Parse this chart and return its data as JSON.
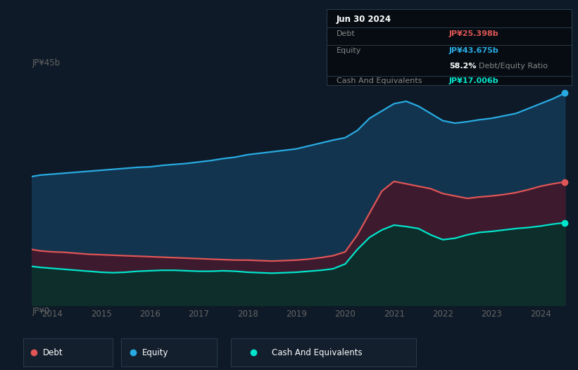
{
  "background_color": "#0e1a27",
  "plot_bg_color": "#0e1a27",
  "title_box": {
    "date": "Jun 30 2024",
    "debt_label": "Debt",
    "debt_value": "JP¥25.398b",
    "equity_label": "Equity",
    "equity_value": "JP¥43.675b",
    "ratio_bold": "58.2%",
    "ratio_text": "Debt/Equity Ratio",
    "cash_label": "Cash And Equivalents",
    "cash_value": "JP¥17.006b",
    "debt_color": "#e05555",
    "equity_color": "#29abe2",
    "cash_color": "#00e5cc",
    "ratio_bold_color": "#ffffff",
    "ratio_text_color": "#888888",
    "box_bg": "#060c12",
    "box_border": "#2a3a4a",
    "label_color": "#888888",
    "title_color": "#ffffff"
  },
  "ylabel_top": "JP¥45b",
  "ylabel_bottom": "JP¥0",
  "equity_color": "#29abe2",
  "equity_fill": "#12344f",
  "debt_color": "#e05555",
  "debt_fill": "#3d1a2e",
  "cash_color": "#00e5cc",
  "cash_fill": "#0d2e2a",
  "grid_color": "#1a2d3f",
  "tick_color": "#666666",
  "legend_bg": "#131f2d",
  "legend_border": "#2a3a4a",
  "dot_size": 6,
  "t": [
    2013.58,
    2013.75,
    2014.0,
    2014.25,
    2014.5,
    2014.75,
    2015.0,
    2015.25,
    2015.5,
    2015.75,
    2016.0,
    2016.25,
    2016.5,
    2016.75,
    2017.0,
    2017.25,
    2017.5,
    2017.75,
    2018.0,
    2018.25,
    2018.5,
    2018.75,
    2019.0,
    2019.25,
    2019.5,
    2019.75,
    2020.0,
    2020.25,
    2020.5,
    2020.75,
    2021.0,
    2021.25,
    2021.5,
    2021.75,
    2022.0,
    2022.25,
    2022.5,
    2022.75,
    2023.0,
    2023.25,
    2023.5,
    2023.75,
    2024.0,
    2024.25,
    2024.5
  ],
  "equity": [
    26.5,
    26.8,
    27.0,
    27.2,
    27.4,
    27.6,
    27.8,
    28.0,
    28.2,
    28.4,
    28.5,
    28.8,
    29.0,
    29.2,
    29.5,
    29.8,
    30.2,
    30.5,
    31.0,
    31.3,
    31.6,
    31.9,
    32.2,
    32.8,
    33.4,
    34.0,
    34.5,
    36.0,
    38.5,
    40.0,
    41.5,
    42.0,
    41.0,
    39.5,
    38.0,
    37.5,
    37.8,
    38.2,
    38.5,
    39.0,
    39.5,
    40.5,
    41.5,
    42.5,
    43.675
  ],
  "debt": [
    11.5,
    11.2,
    11.0,
    10.9,
    10.7,
    10.5,
    10.4,
    10.3,
    10.2,
    10.1,
    10.0,
    9.9,
    9.8,
    9.7,
    9.6,
    9.5,
    9.4,
    9.3,
    9.3,
    9.2,
    9.1,
    9.2,
    9.3,
    9.5,
    9.8,
    10.2,
    11.0,
    14.5,
    19.0,
    23.5,
    25.5,
    25.0,
    24.5,
    24.0,
    23.0,
    22.5,
    22.0,
    22.3,
    22.5,
    22.8,
    23.2,
    23.8,
    24.5,
    25.0,
    25.398
  ],
  "cash": [
    8.0,
    7.8,
    7.6,
    7.4,
    7.2,
    7.0,
    6.8,
    6.7,
    6.8,
    7.0,
    7.1,
    7.2,
    7.2,
    7.1,
    7.0,
    7.0,
    7.1,
    7.0,
    6.8,
    6.7,
    6.6,
    6.7,
    6.8,
    7.0,
    7.2,
    7.5,
    8.5,
    11.5,
    14.0,
    15.5,
    16.5,
    16.2,
    15.8,
    14.5,
    13.5,
    13.8,
    14.5,
    15.0,
    15.2,
    15.5,
    15.8,
    16.0,
    16.3,
    16.7,
    17.006
  ]
}
